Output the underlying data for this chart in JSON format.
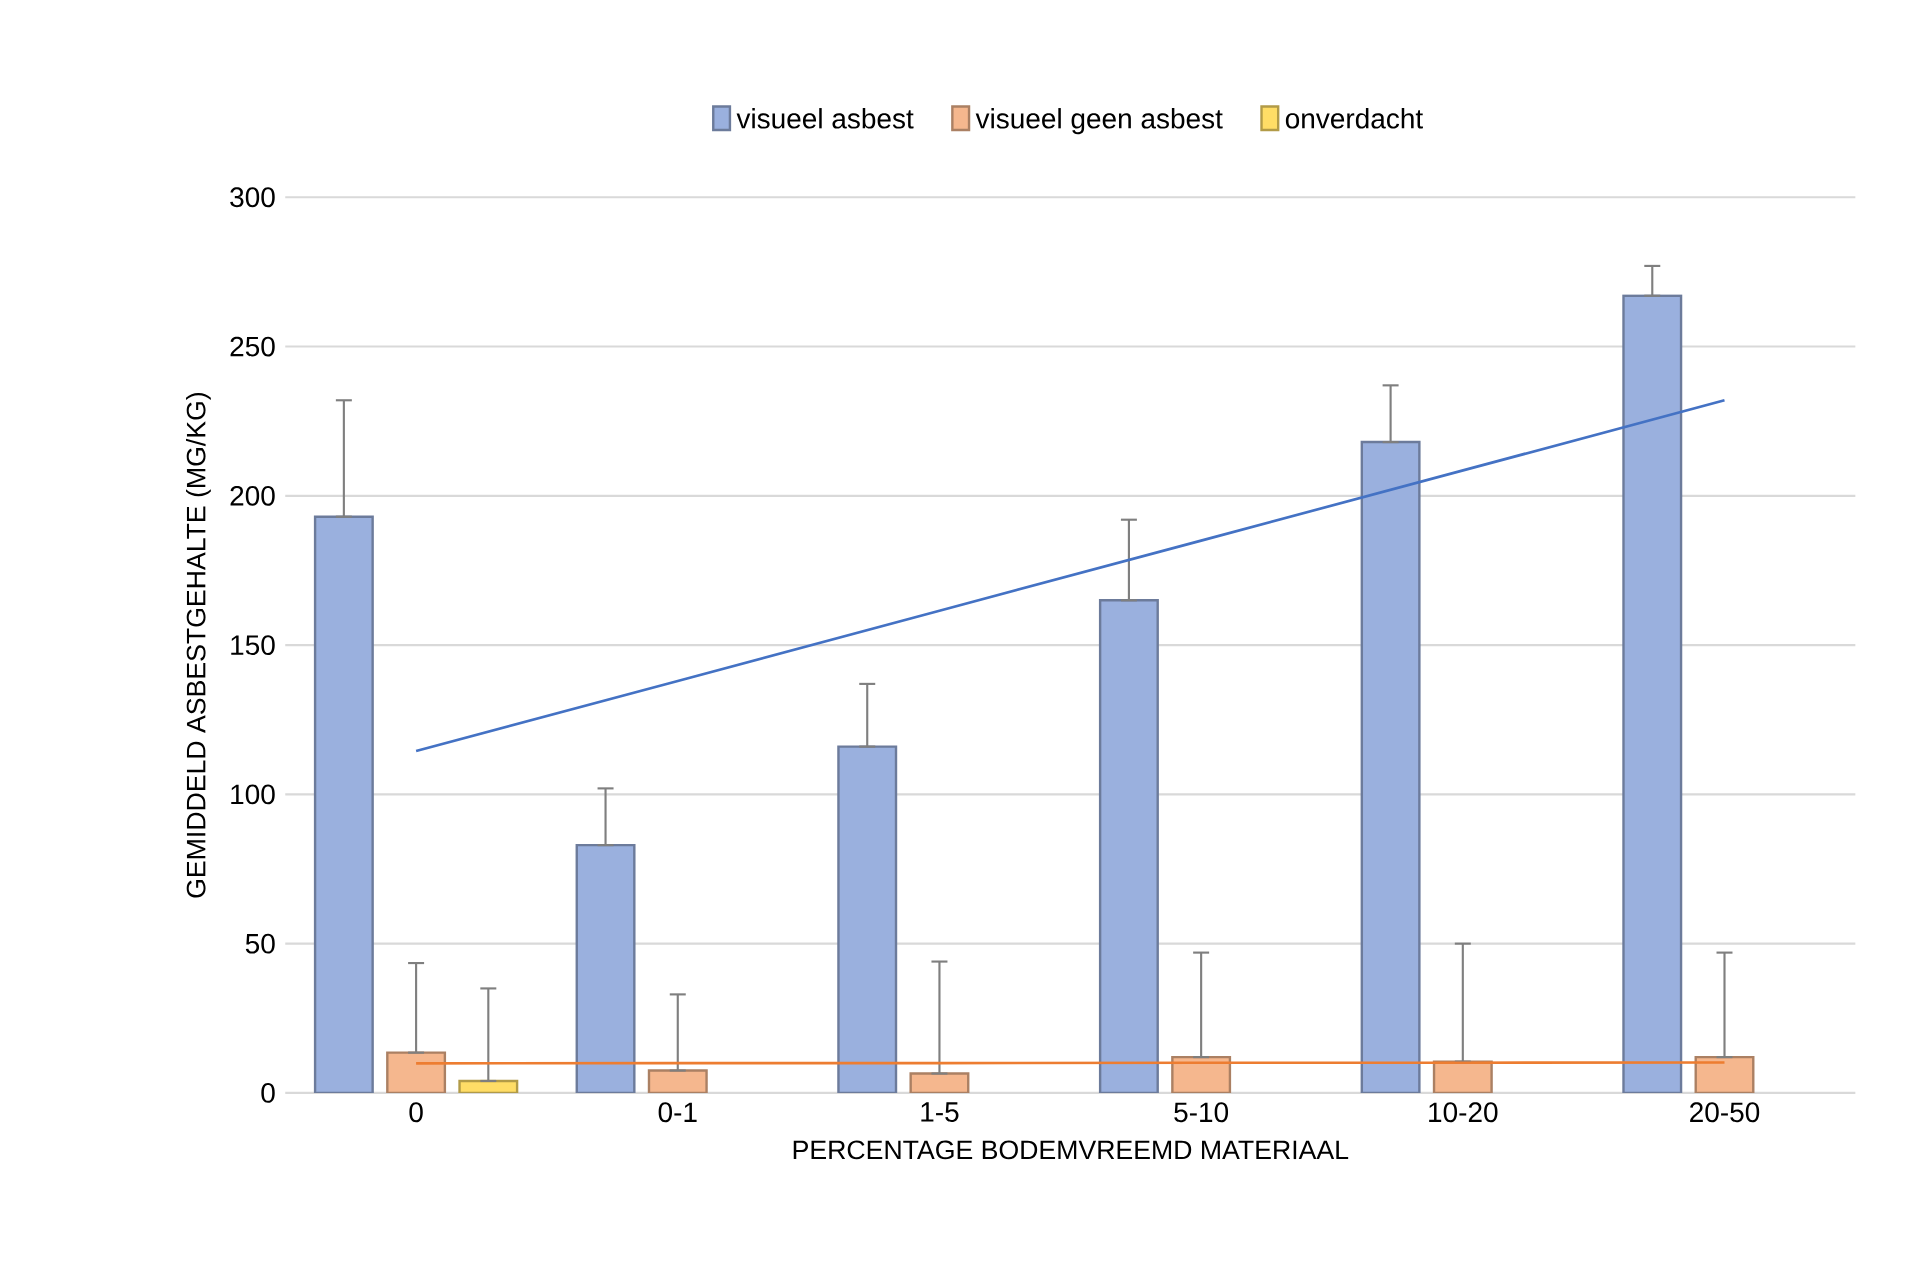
{
  "chart_data": {
    "type": "bar",
    "xlabel": "PERCENTAGE BODEMVREEMD MATERIAAL",
    "ylabel": "GEMIDDELD ASBESTGEHALTE (MG/KG)",
    "categories": [
      "0",
      "0-1",
      "1-5",
      "5-10",
      "10-20",
      "20-50"
    ],
    "series": [
      {
        "name": "visueel asbest",
        "color": "#9ab0de",
        "values": [
          193,
          83,
          116,
          165,
          218,
          267
        ],
        "errors": [
          [
            193,
            232
          ],
          [
            83,
            102
          ],
          [
            116,
            137
          ],
          [
            165,
            192
          ],
          [
            218,
            237
          ],
          [
            267,
            277
          ]
        ]
      },
      {
        "name": "visueel geen asbest",
        "color": "#f5b78e",
        "values": [
          13.5,
          7.5,
          6.5,
          12,
          10.5,
          12
        ],
        "errors": [
          [
            13.5,
            43.5
          ],
          [
            7.5,
            33
          ],
          [
            6.5,
            44
          ],
          [
            12,
            47
          ],
          [
            10.5,
            50
          ],
          [
            12,
            47
          ]
        ]
      },
      {
        "name": "onverdacht",
        "color": "#ffdd66",
        "values": [
          4,
          null,
          null,
          null,
          null,
          null
        ],
        "errors": [
          [
            4,
            35
          ],
          null,
          null,
          null,
          null,
          null
        ]
      },
      {
        "type": "line",
        "color": "#4472c4",
        "values": [
          114.5,
          138,
          161.5,
          185,
          208.5,
          232
        ]
      },
      {
        "type": "line",
        "color": "#ed7d31",
        "values": [
          9.9,
          10,
          10,
          10.1,
          10.1,
          10.2
        ]
      }
    ],
    "ylim": [
      0,
      300
    ],
    "yticks": [
      0,
      50,
      100,
      150,
      200,
      250,
      300
    ],
    "grid": "y",
    "legend": "top"
  }
}
